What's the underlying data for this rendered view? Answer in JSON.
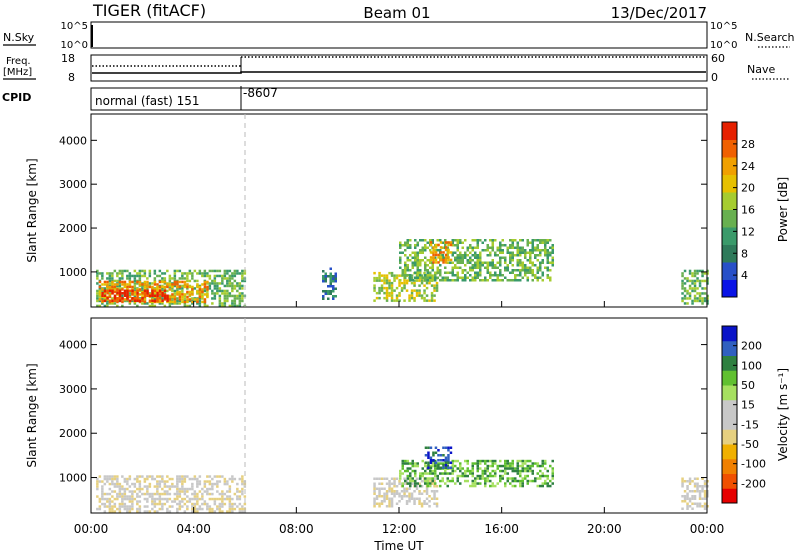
{
  "header": {
    "left": "TIGER (fitACF)",
    "center": "Beam 01",
    "right": "13/Dec/2017"
  },
  "params": {
    "nsky_label": "N.Sky",
    "nsearch_label": "N.Search",
    "freq_label_1": "Freq.",
    "freq_label_2": "[MHz]",
    "nave_label": "Nave",
    "cpid_label": "CPID",
    "nsky_ticks": [
      "10^5",
      "10^0"
    ],
    "nsearch_ticks": [
      "10^5",
      "10^0"
    ],
    "freq_ticks": [
      "18",
      "8"
    ],
    "nave_ticks": [
      "60",
      "0"
    ],
    "cpid_segments": [
      {
        "label": "normal (fast) 151",
        "start_hour": 0
      },
      {
        "label": "-8607",
        "start_hour": 6
      }
    ]
  },
  "chart_data": [
    {
      "type": "heatmap",
      "name": "power",
      "ylabel": "Slant Range [km]",
      "yticks": [
        "1000",
        "2000",
        "3000",
        "4000"
      ],
      "ylim": [
        200,
        4600
      ],
      "xlim": [
        0,
        24
      ],
      "colorbar_label": "Power [dB]",
      "colorbar_ticks": [
        "4",
        "8",
        "12",
        "16",
        "20",
        "24",
        "28"
      ],
      "colors": [
        "#0a14e6",
        "#2850c8",
        "#2e7a5a",
        "#3a9a6a",
        "#68b050",
        "#a6cc30",
        "#e6c000",
        "#f0a000",
        "#f06000",
        "#e62000"
      ],
      "regions": [
        {
          "hour_start": 0.2,
          "hour_end": 6.0,
          "range_start": 250,
          "range_end": 1050,
          "level": 4
        },
        {
          "hour_start": 0.3,
          "hour_end": 4.5,
          "range_start": 300,
          "range_end": 800,
          "level": 7
        },
        {
          "hour_start": 0.4,
          "hour_end": 3.0,
          "range_start": 330,
          "range_end": 600,
          "level": 9
        },
        {
          "hour_start": 9.0,
          "hour_end": 9.5,
          "range_start": 400,
          "range_end": 1100,
          "level": 2
        },
        {
          "hour_start": 11.0,
          "hour_end": 13.5,
          "range_start": 350,
          "range_end": 1000,
          "level": 5
        },
        {
          "hour_start": 12.0,
          "hour_end": 18.0,
          "range_start": 800,
          "range_end": 1750,
          "level": 4
        },
        {
          "hour_start": 13.2,
          "hour_end": 14.0,
          "range_start": 1200,
          "range_end": 1700,
          "level": 7
        },
        {
          "hour_start": 23.0,
          "hour_end": 24.0,
          "range_start": 300,
          "range_end": 1050,
          "level": 4
        }
      ]
    },
    {
      "type": "heatmap",
      "name": "velocity",
      "ylabel": "Slant Range [km]",
      "yticks": [
        "1000",
        "2000",
        "3000",
        "4000"
      ],
      "ylim": [
        200,
        4600
      ],
      "xlim": [
        0,
        24
      ],
      "xticks": [
        "00:00",
        "04:00",
        "08:00",
        "12:00",
        "16:00",
        "20:00",
        "00:00"
      ],
      "xlabel": "Time UT",
      "colorbar_label": "Velocity [m s⁻¹]",
      "colorbar_ticks": [
        "-200",
        "-100",
        "-50",
        "-15",
        "15",
        "50",
        "100",
        "200"
      ],
      "colors": [
        "#e60000",
        "#f05000",
        "#f08000",
        "#f0b000",
        "#e6d080",
        "#c8c8c8",
        "#c8c8c8",
        "#a6e060",
        "#60c030",
        "#2e8040",
        "#3060c0",
        "#0a14c8"
      ],
      "regions": [
        {
          "hour_start": 0.2,
          "hour_end": 6.0,
          "range_start": 250,
          "range_end": 1050,
          "level": 5
        },
        {
          "hour_start": 11.0,
          "hour_end": 13.5,
          "range_start": 350,
          "range_end": 1000,
          "level": 5
        },
        {
          "hour_start": 12.0,
          "hour_end": 18.0,
          "range_start": 800,
          "range_end": 1400,
          "level": 8
        },
        {
          "hour_start": 13.0,
          "hour_end": 14.0,
          "range_start": 1200,
          "range_end": 1700,
          "level": 10
        },
        {
          "hour_start": 23.0,
          "hour_end": 24.0,
          "range_start": 300,
          "range_end": 1000,
          "level": 5
        }
      ]
    }
  ]
}
